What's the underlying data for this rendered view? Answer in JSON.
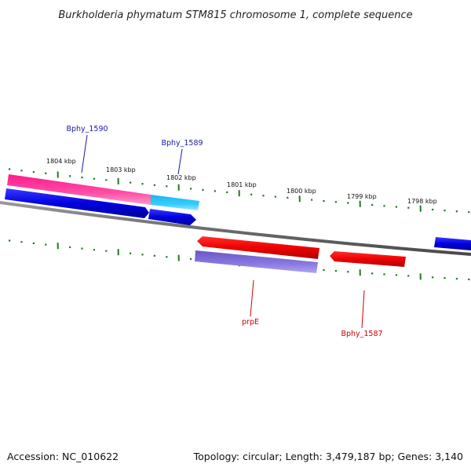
{
  "title": "Burkholderia phymatum STM815 chromosome 1, complete sequence",
  "footer": {
    "accession": "Accession: NC_010622",
    "summary": "Topology: circular; Length: 3,479,187 bp; Genes: 3,140"
  },
  "colors": {
    "backbone": "#7a7a7a",
    "tick": "#1f7a1f",
    "label_blue": "#1a1aa6",
    "label_red": "#cc0000"
  },
  "scale": {
    "labels": [
      "1804 kbp",
      "1803 kbp",
      "1802 kbp",
      "1801 kbp",
      "1800 kbp",
      "1799 kbp",
      "1798 kbp"
    ]
  },
  "genes": [
    {
      "name": "Bphy_1590",
      "color": "blue",
      "label_visible": true
    },
    {
      "name": "Bphy_1589",
      "color": "blue",
      "label_visible": true
    },
    {
      "name": "prpE",
      "color": "red",
      "label_visible": true
    },
    {
      "name": "Bphy_1587",
      "color": "red",
      "label_visible": true
    }
  ]
}
